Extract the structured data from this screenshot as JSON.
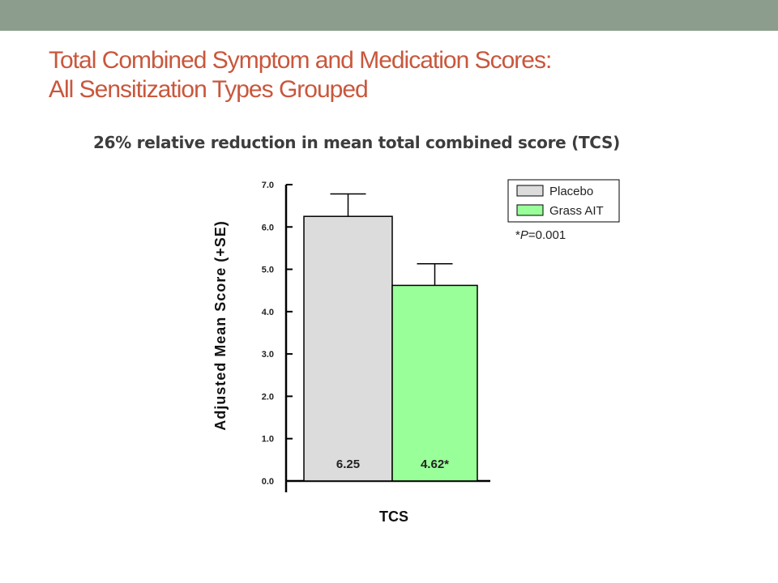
{
  "slide": {
    "title_line1": "Total Combined Symptom and Medication Scores:",
    "title_line2": "All Sensitization Types Grouped",
    "band_color": "#8c9c8d",
    "title_color": "#c9573c"
  },
  "chart_data": {
    "type": "bar",
    "title": "26% relative reduction in mean total combined score (TCS)",
    "xlabel": "TCS",
    "ylabel": "Adjusted Mean Score (+SE)",
    "ylim": [
      0,
      7
    ],
    "yticks": [
      "0.0",
      "1.0",
      "2.0",
      "3.0",
      "4.0",
      "5.0",
      "6.0",
      "7.0"
    ],
    "categories": [
      "TCS"
    ],
    "series": [
      {
        "name": "Placebo",
        "values": [
          6.25
        ],
        "error": [
          0.53
        ],
        "label": "6.25",
        "color": "#dcdcdc"
      },
      {
        "name": "Grass AIT",
        "values": [
          4.62
        ],
        "error": [
          0.51
        ],
        "label": "4.62*",
        "color": "#99ff99"
      }
    ],
    "legend": {
      "placement": "top-right"
    },
    "annotation_prefix": "*",
    "annotation_p": "P",
    "annotation_rest": "=0.001",
    "grid": false
  }
}
